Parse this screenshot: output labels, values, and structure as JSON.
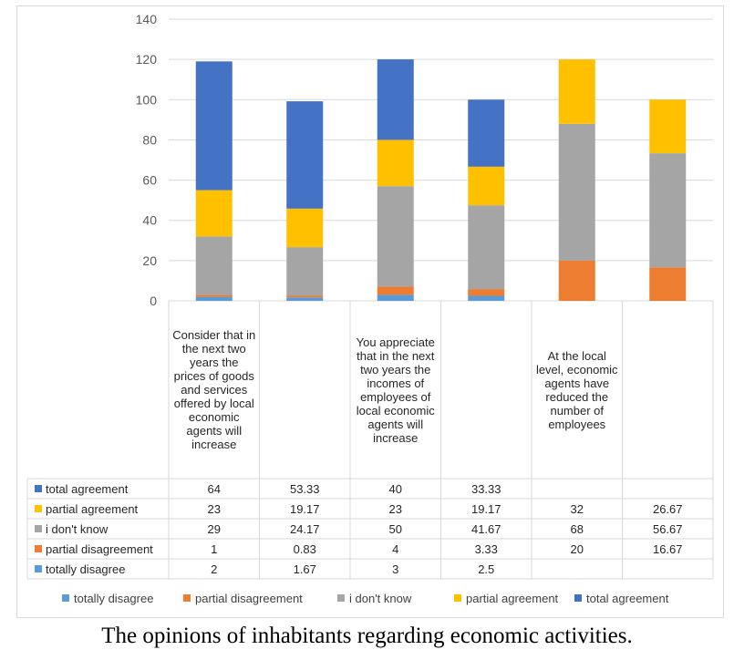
{
  "chart_data": {
    "type": "bar",
    "stacked": true,
    "ylim": [
      0,
      140
    ],
    "yticks": [
      0,
      20,
      40,
      60,
      80,
      100,
      120,
      140
    ],
    "categories": [
      "Consider that in the next two years the prices of goods and services offered by local economic agents will increase",
      "",
      "You appreciate that in the next two years the incomes of employees of local economic agents will increase",
      "",
      "At the local level, economic agents have reduced the number of employees",
      ""
    ],
    "series": [
      {
        "name": "totally disagree",
        "color": "#5b9bd5",
        "values": [
          2,
          1.67,
          3,
          2.5,
          null,
          null
        ]
      },
      {
        "name": "partial disagreement",
        "color": "#ed7d31",
        "values": [
          1,
          0.83,
          4,
          3.33,
          20,
          16.67
        ]
      },
      {
        "name": "i don't know",
        "color": "#a5a5a5",
        "values": [
          29,
          24.17,
          50,
          41.67,
          68,
          56.67
        ]
      },
      {
        "name": "partial agreement",
        "color": "#ffc000",
        "values": [
          23,
          19.17,
          23,
          19.17,
          32,
          26.67
        ]
      },
      {
        "name": "total agreement",
        "color": "#4472c4",
        "values": [
          64,
          53.33,
          40,
          33.33,
          null,
          null
        ]
      }
    ],
    "table_rows": [
      {
        "name": "total agreement",
        "color": "#4472c4",
        "cells": [
          "64",
          "53.33",
          "40",
          "33.33",
          "",
          ""
        ]
      },
      {
        "name": "partial agreement",
        "color": "#ffc000",
        "cells": [
          "23",
          "19.17",
          "23",
          "19.17",
          "32",
          "26.67"
        ]
      },
      {
        "name": "i don't know",
        "color": "#a5a5a5",
        "cells": [
          "29",
          "24.17",
          "50",
          "41.67",
          "68",
          "56.67"
        ]
      },
      {
        "name": "partial disagreement",
        "color": "#ed7d31",
        "cells": [
          "1",
          "0.83",
          "4",
          "3.33",
          "20",
          "16.67"
        ]
      },
      {
        "name": "totally disagree",
        "color": "#5b9bd5",
        "cells": [
          "2",
          "1.67",
          "3",
          "2.5",
          "",
          ""
        ]
      }
    ]
  },
  "caption": "The opinions of inhabitants regarding economic activities."
}
